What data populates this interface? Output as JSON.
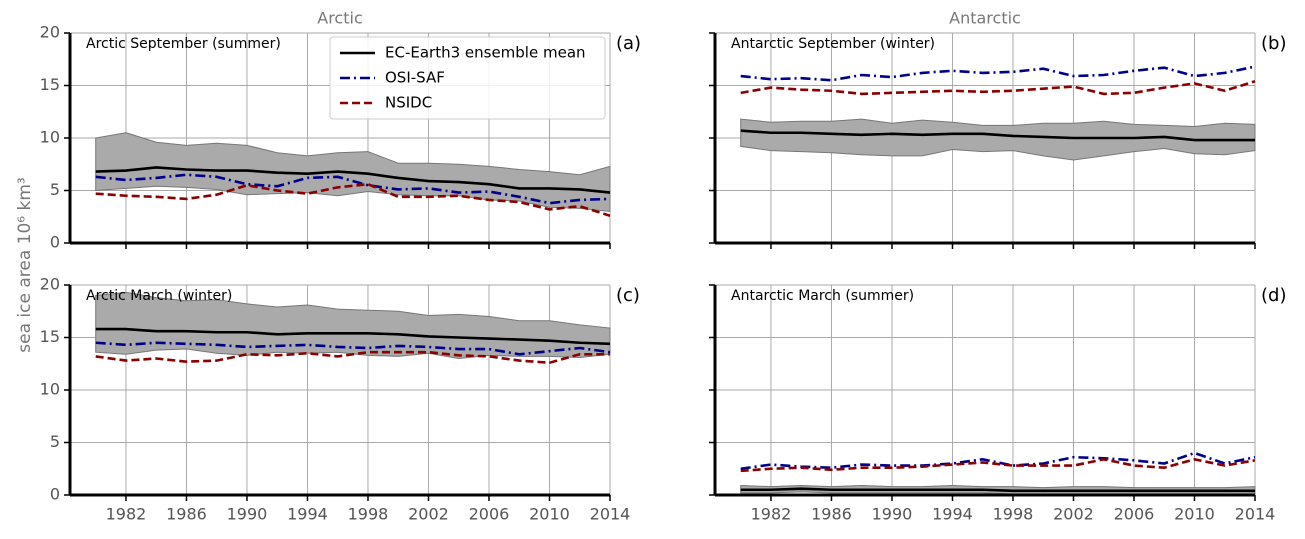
{
  "chart_data": [
    {
      "type": "line",
      "title": "Arctic",
      "annotation": "Arctic September (summer)",
      "panel_label": "(a)",
      "ylabel": "sea ice area 10⁶ km³",
      "x": [
        1980,
        1982,
        1984,
        1986,
        1988,
        1990,
        1992,
        1994,
        1996,
        1998,
        2000,
        2002,
        2004,
        2006,
        2008,
        2010,
        2012,
        2014
      ],
      "series": [
        {
          "name": "EC-Earth3 ensemble mean",
          "color": "#000000",
          "linestyle": "solid",
          "values": [
            6.8,
            6.9,
            7.2,
            7.0,
            6.9,
            6.9,
            6.7,
            6.6,
            6.8,
            6.6,
            6.2,
            5.9,
            5.8,
            5.6,
            5.2,
            5.2,
            5.1,
            4.8
          ]
        },
        {
          "name": "OSI-SAF",
          "color": "#00008b",
          "linestyle": "dashdot",
          "values": [
            6.3,
            6.0,
            6.2,
            6.5,
            6.3,
            5.6,
            5.4,
            6.2,
            6.3,
            5.5,
            5.1,
            5.2,
            4.8,
            4.9,
            4.4,
            3.8,
            4.1,
            4.2
          ]
        },
        {
          "name": "NSIDC",
          "color": "#8b0000",
          "linestyle": "dashed",
          "values": [
            4.7,
            4.5,
            4.4,
            4.2,
            4.6,
            5.5,
            5.0,
            4.7,
            5.3,
            5.6,
            4.4,
            4.4,
            4.5,
            4.1,
            3.9,
            3.2,
            3.5,
            2.6
          ]
        }
      ],
      "band": {
        "color": "#aaaaaa",
        "upper": [
          10,
          10.5,
          9.6,
          9.3,
          9.5,
          9.3,
          8.6,
          8.3,
          8.6,
          8.7,
          7.6,
          7.6,
          7.5,
          7.3,
          7.0,
          6.8,
          6.5,
          7.3
        ],
        "lower": [
          5,
          5.2,
          5.4,
          5.3,
          5.1,
          4.6,
          4.7,
          4.8,
          4.5,
          4.9,
          4.6,
          4.5,
          4.5,
          4.1,
          4.0,
          3.4,
          3.3,
          3.0
        ]
      },
      "xlim": [
        1978.3,
        2014
      ],
      "ylim": [
        0,
        20
      ],
      "xticks": [
        1982,
        1986,
        1990,
        1994,
        1998,
        2002,
        2006,
        2010,
        2014
      ],
      "yticks": [
        0,
        5,
        10,
        15,
        20
      ],
      "grid": true,
      "legend": true,
      "show_xtick_labels": false,
      "show_ytick_labels": true
    },
    {
      "type": "line",
      "title": "Antarctic",
      "annotation": "Antarctic September (winter)",
      "panel_label": "(b)",
      "x": [
        1980,
        1982,
        1984,
        1986,
        1988,
        1990,
        1992,
        1994,
        1996,
        1998,
        2000,
        2002,
        2004,
        2006,
        2008,
        2010,
        2012,
        2014
      ],
      "series": [
        {
          "name": "EC-Earth3 ensemble mean",
          "color": "#000000",
          "linestyle": "solid",
          "values": [
            10.7,
            10.5,
            10.5,
            10.4,
            10.3,
            10.4,
            10.3,
            10.4,
            10.4,
            10.2,
            10.1,
            10.0,
            10.0,
            10.0,
            10.1,
            9.8,
            9.8,
            9.8
          ]
        },
        {
          "name": "OSI-SAF",
          "color": "#00008b",
          "linestyle": "dashdot",
          "values": [
            15.9,
            15.6,
            15.7,
            15.5,
            16.0,
            15.8,
            16.2,
            16.4,
            16.2,
            16.3,
            16.6,
            15.9,
            16.0,
            16.4,
            16.7,
            15.9,
            16.2,
            16.8
          ]
        },
        {
          "name": "NSIDC",
          "color": "#8b0000",
          "linestyle": "dashed",
          "values": [
            14.3,
            14.8,
            14.6,
            14.5,
            14.2,
            14.3,
            14.4,
            14.5,
            14.4,
            14.5,
            14.7,
            14.9,
            14.2,
            14.3,
            14.8,
            15.2,
            14.5,
            15.4
          ]
        }
      ],
      "band": {
        "color": "#aaaaaa",
        "upper": [
          11.8,
          11.5,
          11.6,
          11.6,
          11.8,
          11.4,
          11.7,
          11.5,
          11.2,
          11.2,
          11.4,
          11.4,
          11.6,
          11.3,
          11.2,
          11.1,
          11.4,
          11.3
        ],
        "lower": [
          9.2,
          8.8,
          8.7,
          8.6,
          8.4,
          8.3,
          8.3,
          8.9,
          8.7,
          8.8,
          8.3,
          7.9,
          8.3,
          8.7,
          9.0,
          8.5,
          8.4,
          8.8
        ]
      },
      "xlim": [
        1978.3,
        2014
      ],
      "ylim": [
        0,
        20
      ],
      "xticks": [
        1982,
        1986,
        1990,
        1994,
        1998,
        2002,
        2006,
        2010,
        2014
      ],
      "yticks": [
        0,
        5,
        10,
        15,
        20
      ],
      "grid": true,
      "legend": false,
      "show_xtick_labels": false,
      "show_ytick_labels": false
    },
    {
      "type": "line",
      "annotation": "Arctic March (winter)",
      "panel_label": "(c)",
      "x": [
        1980,
        1982,
        1984,
        1986,
        1988,
        1990,
        1992,
        1994,
        1996,
        1998,
        2000,
        2002,
        2004,
        2006,
        2008,
        2010,
        2012,
        2014
      ],
      "series": [
        {
          "name": "EC-Earth3 ensemble mean",
          "color": "#000000",
          "linestyle": "solid",
          "values": [
            15.8,
            15.8,
            15.6,
            15.6,
            15.5,
            15.5,
            15.3,
            15.4,
            15.4,
            15.4,
            15.3,
            15.1,
            15.0,
            14.9,
            14.8,
            14.7,
            14.5,
            14.4
          ]
        },
        {
          "name": "OSI-SAF",
          "color": "#00008b",
          "linestyle": "dashdot",
          "values": [
            14.5,
            14.3,
            14.5,
            14.4,
            14.3,
            14.1,
            14.2,
            14.3,
            14.1,
            14.0,
            14.2,
            14.1,
            13.9,
            13.9,
            13.4,
            13.7,
            14.0,
            13.6
          ]
        },
        {
          "name": "NSIDC",
          "color": "#8b0000",
          "linestyle": "dashed",
          "values": [
            13.2,
            12.8,
            13.0,
            12.7,
            12.8,
            13.4,
            13.3,
            13.5,
            13.2,
            13.6,
            13.6,
            13.6,
            13.3,
            13.2,
            12.8,
            12.6,
            13.4,
            13.4
          ]
        }
      ],
      "band": {
        "color": "#aaaaaa",
        "upper": [
          19,
          19.3,
          18.8,
          18.5,
          18.6,
          18.2,
          17.9,
          18.1,
          17.7,
          17.6,
          17.5,
          17.1,
          17.2,
          17,
          16.6,
          16.6,
          16.2,
          15.9
        ],
        "lower": [
          13.6,
          13.4,
          13.8,
          13.9,
          13.5,
          13.3,
          13.6,
          13.5,
          13.6,
          13.3,
          13.2,
          13.5,
          13.0,
          13.3,
          13.2,
          13.2,
          13.1,
          13.4
        ]
      },
      "xlim": [
        1978.3,
        2014
      ],
      "ylim": [
        0,
        20
      ],
      "xticks": [
        1982,
        1986,
        1990,
        1994,
        1998,
        2002,
        2006,
        2010,
        2014
      ],
      "yticks": [
        0,
        5,
        10,
        15,
        20
      ],
      "grid": true,
      "legend": false,
      "show_xtick_labels": true,
      "show_ytick_labels": true
    },
    {
      "type": "line",
      "annotation": "Antarctic March (summer)",
      "panel_label": "(d)",
      "x": [
        1980,
        1982,
        1984,
        1986,
        1988,
        1990,
        1992,
        1994,
        1996,
        1998,
        2000,
        2002,
        2004,
        2006,
        2008,
        2010,
        2012,
        2014
      ],
      "series": [
        {
          "name": "EC-Earth3 ensemble mean",
          "color": "#000000",
          "linestyle": "solid",
          "values": [
            0.5,
            0.5,
            0.6,
            0.5,
            0.5,
            0.5,
            0.5,
            0.5,
            0.5,
            0.4,
            0.4,
            0.4,
            0.4,
            0.4,
            0.4,
            0.4,
            0.4,
            0.4
          ]
        },
        {
          "name": "OSI-SAF",
          "color": "#00008b",
          "linestyle": "dashdot",
          "values": [
            2.5,
            2.9,
            2.7,
            2.6,
            2.9,
            2.8,
            2.8,
            3.0,
            3.4,
            2.8,
            3.0,
            3.6,
            3.5,
            3.3,
            3.0,
            4.0,
            3.0,
            3.6
          ]
        },
        {
          "name": "NSIDC",
          "color": "#8b0000",
          "linestyle": "dashed",
          "values": [
            2.3,
            2.5,
            2.6,
            2.4,
            2.6,
            2.6,
            2.7,
            2.9,
            3.1,
            2.8,
            2.8,
            2.8,
            3.4,
            2.8,
            2.6,
            3.4,
            2.8,
            3.3
          ]
        }
      ],
      "band": {
        "color": "#aaaaaa",
        "upper": [
          0.9,
          0.8,
          0.9,
          0.8,
          0.9,
          0.8,
          0.8,
          0.9,
          0.8,
          0.8,
          0.7,
          0.8,
          0.8,
          0.7,
          0.7,
          0.7,
          0.7,
          0.8
        ],
        "lower": [
          0.2,
          0.2,
          0.3,
          0.2,
          0.2,
          0.2,
          0.2,
          0.2,
          0.2,
          0.1,
          0.1,
          0.1,
          0.1,
          0.1,
          0.1,
          0.1,
          0.1,
          0.1
        ]
      },
      "xlim": [
        1978.3,
        2014
      ],
      "ylim": [
        0,
        20
      ],
      "xticks": [
        1982,
        1986,
        1990,
        1994,
        1998,
        2002,
        2006,
        2010,
        2014
      ],
      "yticks": [
        0,
        5,
        10,
        15,
        20
      ],
      "grid": true,
      "legend": false,
      "show_xtick_labels": true,
      "show_ytick_labels": false
    }
  ]
}
